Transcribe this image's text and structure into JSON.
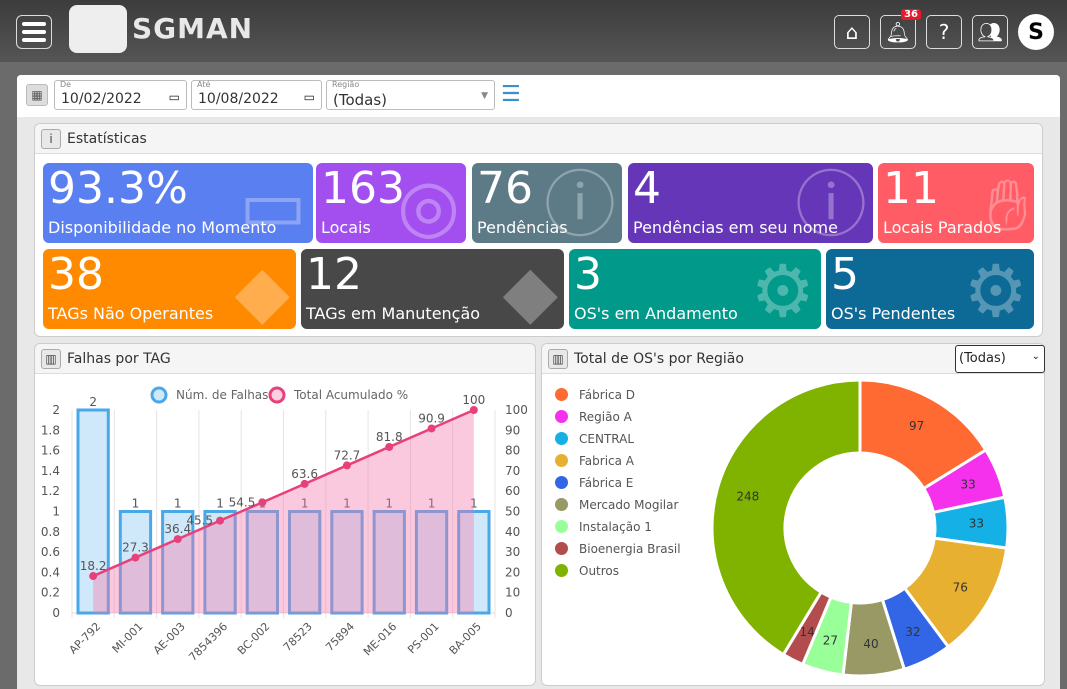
{
  "header": {
    "brand": "SGMAN",
    "notifications_count": "36",
    "icons": [
      "menu-icon",
      "home-icon",
      "bell-icon",
      "help-document-icon",
      "users-icon",
      "logo-icon"
    ]
  },
  "filters": {
    "from_label": "De",
    "from_value": "10/02/2022",
    "to_label": "Até",
    "to_value": "10/08/2022",
    "region_label": "Região",
    "region_value": "(Todas)"
  },
  "stats": {
    "title": "Estatísticas",
    "cards": [
      {
        "value": "93.3%",
        "label": "Disponibilidade no Momento",
        "color": "#5a7ff0",
        "icon": "chart-monitor-icon"
      },
      {
        "value": "163",
        "label": "Locais",
        "color": "#a34ff0",
        "icon": "map-pin-icon"
      },
      {
        "value": "76",
        "label": "Pendências",
        "color": "#5d7b87",
        "icon": "alert-icon"
      },
      {
        "value": "4",
        "label": "Pendências em seu nome",
        "color": "#6636b8",
        "icon": "alert-icon"
      },
      {
        "value": "11",
        "label": "Locais Parados",
        "color": "#ff5c66",
        "icon": "hand-icon"
      },
      {
        "value": "38",
        "label": "TAGs Não Operantes",
        "color": "#ff8a00",
        "icon": "tag-icon"
      },
      {
        "value": "12",
        "label": "TAGs em Manutenção",
        "color": "#484848",
        "icon": "tag-icon"
      },
      {
        "value": "3",
        "label": "OS's em Andamento",
        "color": "#00998a",
        "icon": "gear-wrench-icon"
      },
      {
        "value": "5",
        "label": "OS's Pendentes",
        "color": "#0d6995",
        "icon": "gear-wrench-icon"
      }
    ]
  },
  "falhas": {
    "title": "Falhas por TAG",
    "chart_data": {
      "type": "bar+line",
      "categories": [
        "AP-792",
        "MI-001",
        "AE-003",
        "7854396",
        "BC-002",
        "78523",
        "75894",
        "ME-016",
        "PS-001",
        "BA-005"
      ],
      "series": [
        {
          "name": "Núm. de Falhas",
          "type": "bar",
          "axis": "left",
          "values": [
            2,
            1,
            1,
            1,
            1,
            1,
            1,
            1,
            1,
            1
          ],
          "color": "#4aa8e8"
        },
        {
          "name": "Total Acumulado %",
          "type": "line",
          "axis": "right",
          "values": [
            18.2,
            27.3,
            36.4,
            45.5,
            54.5,
            63.6,
            72.7,
            81.8,
            90.9,
            100
          ],
          "color": "#e8407a"
        }
      ],
      "yleft": {
        "range": [
          0,
          2
        ],
        "ticks": [
          "0",
          "0.2",
          "0.4",
          "0.6",
          "0.8",
          "1",
          "1.2",
          "1.4",
          "1.6",
          "1.8",
          "2"
        ]
      },
      "yright": {
        "range": [
          0,
          100
        ],
        "ticks": [
          "0",
          "10",
          "20",
          "30",
          "40",
          "50",
          "60",
          "70",
          "80",
          "90",
          "100"
        ]
      },
      "legend": "top",
      "grid": "vertical"
    }
  },
  "regiao": {
    "title": "Total de OS's por Região",
    "select_value": "(Todas)",
    "chart_data": {
      "type": "pie",
      "donut": true,
      "legend": "left",
      "slices": [
        {
          "name": "Fábrica D",
          "value": 97,
          "color": "#ff6a33"
        },
        {
          "name": "Região A",
          "value": 33,
          "color": "#f531ee"
        },
        {
          "name": "CENTRAL",
          "value": 33,
          "color": "#14b0e6"
        },
        {
          "name": "Fabrica A",
          "value": 76,
          "color": "#e8b030"
        },
        {
          "name": "Fábrica E",
          "value": 32,
          "color": "#3366e6"
        },
        {
          "name": "Mercado Mogilar",
          "value": 40,
          "color": "#999966"
        },
        {
          "name": "Instalação 1",
          "value": 27,
          "color": "#99ff99"
        },
        {
          "name": "Bioenergia Brasil",
          "value": 14,
          "color": "#b34d4d"
        },
        {
          "name": "Outros",
          "value": 248,
          "color": "#80b300"
        }
      ]
    }
  }
}
